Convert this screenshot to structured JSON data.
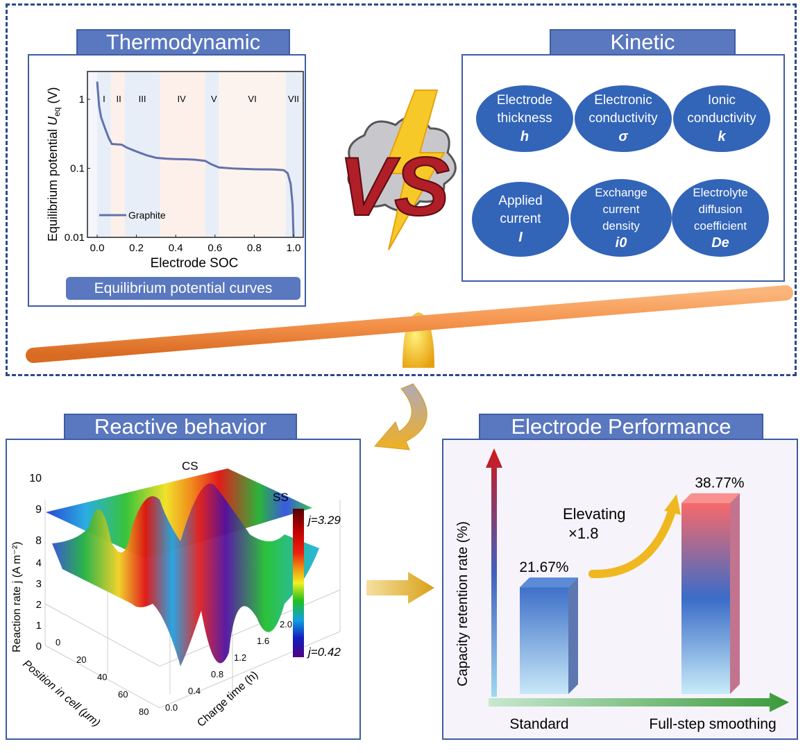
{
  "thermodynamic": {
    "title": "Thermodynamic",
    "button": "Equilibrium potential curves",
    "chart_data": {
      "type": "line",
      "xlabel": "Electrode SOC",
      "ylabel": "Equilibrium potential U_eq (V)",
      "ylabel_main": "Equilibrium potential ",
      "ylabel_sym": "U",
      "ylabel_sub": "eq",
      "ylabel_unit": " (V)",
      "yscale": "log",
      "xlim": [
        -0.05,
        1.05
      ],
      "ylim": [
        0.01,
        2.2
      ],
      "xticks": [
        "0.0",
        "0.2",
        "0.4",
        "0.6",
        "0.8",
        "1.0"
      ],
      "yticks": [
        "0.01",
        "0.1",
        "1"
      ],
      "stage_labels": [
        "I",
        "II",
        "III",
        "IV",
        "V",
        "VI",
        "VII"
      ],
      "stage_label_soc": [
        0.035,
        0.11,
        0.23,
        0.43,
        0.595,
        0.79,
        1.0
      ],
      "series": [
        {
          "name": "Graphite",
          "x": [
            0.0,
            0.01,
            0.02,
            0.04,
            0.06,
            0.075,
            0.1,
            0.125,
            0.15,
            0.2,
            0.25,
            0.3,
            0.35,
            0.4,
            0.45,
            0.5,
            0.55,
            0.58,
            0.62,
            0.7,
            0.8,
            0.9,
            0.95,
            0.97,
            0.985,
            0.995,
            1.0
          ],
          "y": [
            1.8,
            0.8,
            0.55,
            0.38,
            0.27,
            0.225,
            0.222,
            0.22,
            0.2,
            0.175,
            0.155,
            0.142,
            0.138,
            0.136,
            0.135,
            0.133,
            0.128,
            0.115,
            0.103,
            0.099,
            0.097,
            0.096,
            0.094,
            0.085,
            0.06,
            0.03,
            0.01
          ]
        }
      ]
    }
  },
  "vs_label": "VS",
  "kinetic": {
    "title": "Kinetic",
    "params": [
      {
        "line1": "Electrode",
        "line2": "thickness",
        "symbol": "h"
      },
      {
        "line1": "Electronic",
        "line2": "conductivity",
        "symbol": "σ"
      },
      {
        "line1": "Ionic",
        "line2": "conductivity",
        "symbol": "k"
      },
      {
        "line1": "Applied",
        "line2": "current",
        "symbol": "I"
      },
      {
        "line1": "Exchange",
        "line2": "current",
        "line3": "density",
        "symbol": "i0"
      },
      {
        "line1": "Electrolyte",
        "line2": "diffusion",
        "line3": "coefficient",
        "symbol": "De"
      }
    ]
  },
  "reactive": {
    "title": "Reactive behavior",
    "label_cs": "CS",
    "label_ss": "SS",
    "zlabel": "Reaction rate j (A m⁻²)",
    "xlabel": "Position in cell (μm)",
    "ylabel": "Charge time (h)",
    "zticks_upper": [
      "8",
      "9",
      "10"
    ],
    "zticks_lower": [
      "0",
      "1",
      "2",
      "3",
      "4"
    ],
    "xticks": [
      "0",
      "20",
      "40",
      "60",
      "80"
    ],
    "yticks": [
      "0.0",
      "0.4",
      "0.8",
      "1.2",
      "1.6",
      "2.0"
    ],
    "colorbar_max": "j=3.29",
    "colorbar_min": "j=0.42"
  },
  "performance": {
    "title": "Electrode Performance",
    "chart_data": {
      "type": "bar",
      "ylabel": "Capacity retention rate (%)",
      "categories": [
        "Standard",
        "Full-step smoothing"
      ],
      "values": [
        21.67,
        38.77
      ],
      "value_labels": [
        "21.67%",
        "38.77%"
      ],
      "annotation_line1": "Elevating",
      "annotation_line2": "×1.8"
    }
  },
  "colors": {
    "accent": "#5a78bf",
    "border": "#2b4a8a",
    "ellipse": "#3264b8",
    "beam": "#f4924a",
    "curve": "#6272aa"
  }
}
